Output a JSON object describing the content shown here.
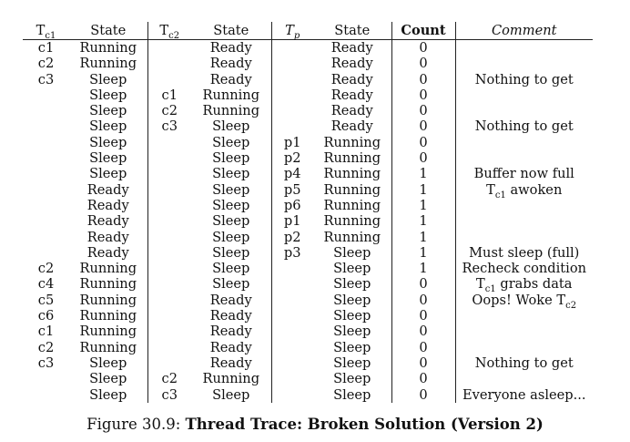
{
  "headers": {
    "tc1": "T",
    "tc1_sub": "c1",
    "state1": "State",
    "tc2": "T",
    "tc2_sub": "c2",
    "state2": "State",
    "tp": "T",
    "tp_sub": "p",
    "statep": "State",
    "count": "Count",
    "comment": "Comment"
  },
  "rows": [
    [
      "c1",
      "Running",
      "",
      "Ready",
      "",
      "Ready",
      "0",
      ""
    ],
    [
      "c2",
      "Running",
      "",
      "Ready",
      "",
      "Ready",
      "0",
      ""
    ],
    [
      "c3",
      "Sleep",
      "",
      "Ready",
      "",
      "Ready",
      "0",
      "Nothing to get"
    ],
    [
      "",
      "Sleep",
      "c1",
      "Running",
      "",
      "Ready",
      "0",
      ""
    ],
    [
      "",
      "Sleep",
      "c2",
      "Running",
      "",
      "Ready",
      "0",
      ""
    ],
    [
      "",
      "Sleep",
      "c3",
      "Sleep",
      "",
      "Ready",
      "0",
      "Nothing to get"
    ],
    [
      "",
      "Sleep",
      "",
      "Sleep",
      "p1",
      "Running",
      "0",
      ""
    ],
    [
      "",
      "Sleep",
      "",
      "Sleep",
      "p2",
      "Running",
      "0",
      ""
    ],
    [
      "",
      "Sleep",
      "",
      "Sleep",
      "p4",
      "Running",
      "1",
      "Buffer now full"
    ],
    [
      "",
      "Ready",
      "",
      "Sleep",
      "p5",
      "Running",
      "1",
      "T_c1 awoken"
    ],
    [
      "",
      "Ready",
      "",
      "Sleep",
      "p6",
      "Running",
      "1",
      ""
    ],
    [
      "",
      "Ready",
      "",
      "Sleep",
      "p1",
      "Running",
      "1",
      ""
    ],
    [
      "",
      "Ready",
      "",
      "Sleep",
      "p2",
      "Running",
      "1",
      ""
    ],
    [
      "",
      "Ready",
      "",
      "Sleep",
      "p3",
      "Sleep",
      "1",
      "Must sleep (full)"
    ],
    [
      "c2",
      "Running",
      "",
      "Sleep",
      "",
      "Sleep",
      "1",
      "Recheck condition"
    ],
    [
      "c4",
      "Running",
      "",
      "Sleep",
      "",
      "Sleep",
      "0",
      "T_c1 grabs data"
    ],
    [
      "c5",
      "Running",
      "",
      "Ready",
      "",
      "Sleep",
      "0",
      "Oops! Woke T_c2"
    ],
    [
      "c6",
      "Running",
      "",
      "Ready",
      "",
      "Sleep",
      "0",
      ""
    ],
    [
      "c1",
      "Running",
      "",
      "Ready",
      "",
      "Sleep",
      "0",
      ""
    ],
    [
      "c2",
      "Running",
      "",
      "Ready",
      "",
      "Sleep",
      "0",
      ""
    ],
    [
      "c3",
      "Sleep",
      "",
      "Ready",
      "",
      "Sleep",
      "0",
      "Nothing to get"
    ],
    [
      "",
      "Sleep",
      "c2",
      "Running",
      "",
      "Sleep",
      "0",
      ""
    ],
    [
      "",
      "Sleep",
      "c3",
      "Sleep",
      "",
      "Sleep",
      "0",
      "Everyone asleep..."
    ]
  ],
  "caption": {
    "prefix": "Figure 30.9: ",
    "title": "Thread Trace: Broken Solution (Version 2)"
  }
}
